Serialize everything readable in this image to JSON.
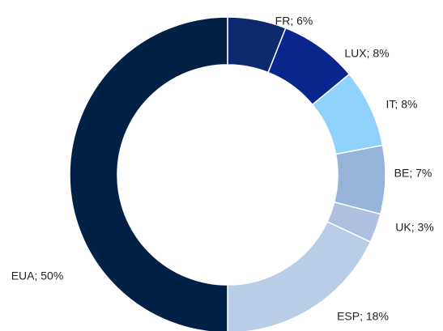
{
  "chart_data": {
    "type": "donut",
    "values": [
      6,
      8,
      8,
      7,
      3,
      18,
      50
    ],
    "value_labels": [
      "FR; 6%",
      "LUX; 8%",
      "IT; 8%",
      "BE; 7%",
      "UK; 3%",
      "ESP; 18%",
      "EUA; 50%"
    ],
    "colors": [
      "#0b2a6e",
      "#08268c",
      "#8fd2fb",
      "#96b4d9",
      "#aebfdf",
      "#b9cde6",
      "#002045"
    ]
  }
}
